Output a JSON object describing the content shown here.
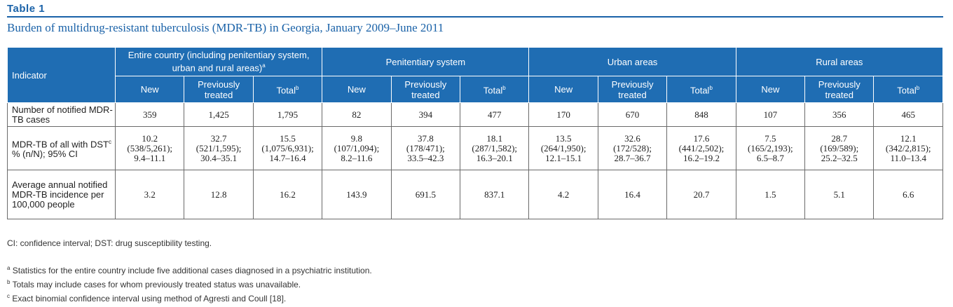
{
  "table_label": "Table 1",
  "caption": "Burden of multidrug-resistant tuberculosis (MDR-TB) in Georgia, January 2009–June 2011",
  "indicator_header": "Indicator",
  "groups": [
    {
      "label": "Entire country (including penitentiary system, urban and rural areas)",
      "sup": "a"
    },
    {
      "label": "Penitentiary system",
      "sup": ""
    },
    {
      "label": "Urban areas",
      "sup": ""
    },
    {
      "label": "Rural areas",
      "sup": ""
    }
  ],
  "sub_headers": {
    "new": "New",
    "prev": "Previously treated",
    "total": "Total",
    "total_sup": "b"
  },
  "rows": [
    {
      "indicator": "Number of notified MDR-TB cases",
      "indicator_sup": "",
      "indicator_tail": "",
      "cells": [
        "359",
        "1,425",
        "1,795",
        "82",
        "394",
        "477",
        "170",
        "670",
        "848",
        "107",
        "356",
        "465"
      ]
    },
    {
      "indicator": "MDR-TB of all with DST",
      "indicator_sup": "c",
      "indicator_tail": "% (n/N); 95% CI",
      "cells": [
        [
          "10.2",
          "(538/5,261);",
          "9.4–11.1"
        ],
        [
          "32.7",
          "(521/1,595);",
          "30.4–35.1"
        ],
        [
          "15.5",
          "(1,075/6,931);",
          "14.7–16.4"
        ],
        [
          "9.8",
          "(107/1,094);",
          "8.2–11.6"
        ],
        [
          "37.8",
          "(178/471);",
          "33.5–42.3"
        ],
        [
          "18.1",
          "(287/1,582);",
          "16.3–20.1"
        ],
        [
          "13.5",
          "(264/1,950);",
          "12.1–15.1"
        ],
        [
          "32.6",
          "(172/528);",
          "28.7–36.7"
        ],
        [
          "17.6",
          "(441/2,502);",
          "16.2–19.2"
        ],
        [
          "7.5",
          "(165/2,193);",
          "6.5–8.7"
        ],
        [
          "28.7",
          "(169/589);",
          "25.2–32.5"
        ],
        [
          "12.1",
          "(342/2,815);",
          "11.0–13.4"
        ]
      ]
    },
    {
      "indicator": "Average annual notified MDR-TB incidence per 100,000 people",
      "indicator_sup": "",
      "indicator_tail": "",
      "cells": [
        "3.2",
        "12.8",
        "16.2",
        "143.9",
        "691.5",
        "837.1",
        "4.2",
        "16.4",
        "20.7",
        "1.5",
        "5.1",
        "6.6"
      ]
    }
  ],
  "abbreviations": "CI: confidence interval; DST: drug susceptibility testing.",
  "footnotes": [
    {
      "sup": "a",
      "text": "Statistics for the entire country include five additional cases diagnosed in a psychiatric institution."
    },
    {
      "sup": "b",
      "text": "Totals may include cases for whom previously treated status was unavailable."
    },
    {
      "sup": "c",
      "text": "Exact binomial confidence interval using method of Agresti and Coull [18]."
    }
  ]
}
